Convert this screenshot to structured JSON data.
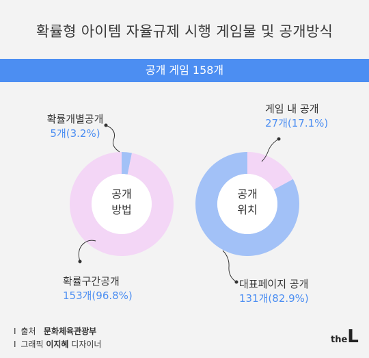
{
  "title": "확률형 아이템 자율규제 시행 게임물 및 공개방식",
  "banner": "공개 게임 158개",
  "chart_data": [
    {
      "type": "pie",
      "center_label": [
        "공개",
        "방법"
      ],
      "slices": [
        {
          "name": "확률개별공개",
          "count_label": "5개(3.2%)",
          "value": 5,
          "percent": 3.2,
          "color": "#a2c1f7"
        },
        {
          "name": "확률구간공개",
          "count_label": "153개(96.8%)",
          "value": 153,
          "percent": 96.8,
          "color": "#f3d6f6"
        }
      ]
    },
    {
      "type": "pie",
      "center_label": [
        "공개",
        "위치"
      ],
      "slices": [
        {
          "name": "게임 내 공개",
          "count_label": "27개(17.1%)",
          "value": 27,
          "percent": 17.1,
          "color": "#f3d6f6"
        },
        {
          "name": "대표페이지 공개",
          "count_label": "131개(82.9%)",
          "value": 131,
          "percent": 82.9,
          "color": "#a2c1f7"
        }
      ]
    }
  ],
  "source": {
    "line1_prefix": "출처",
    "line1_value": "문화체육관광부",
    "line2_prefix": "그래픽",
    "line2_name": "이지혜",
    "line2_suffix": "디자이너"
  },
  "logo": {
    "the": "the",
    "L": "L"
  }
}
